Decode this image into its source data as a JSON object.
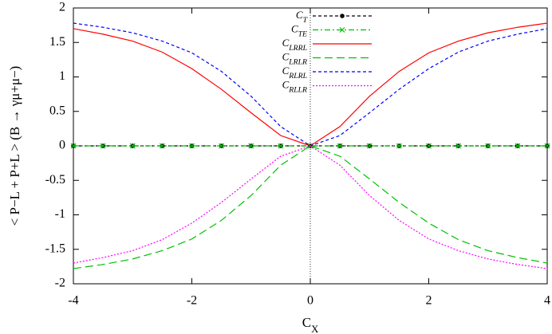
{
  "chart_data": {
    "type": "line",
    "x_label": "C_X",
    "y_label": "< P−L + P+L > (B → γμ+μ−)",
    "x": [
      -4,
      -3.5,
      -3,
      -2.5,
      -2,
      -1.5,
      -1,
      -0.5,
      0,
      0.5,
      1,
      1.5,
      2,
      2.5,
      3,
      3.5,
      4
    ],
    "series": [
      {
        "name": "C_T",
        "color": "#000000",
        "dash": "4,3",
        "marker": "dot",
        "values": [
          0,
          0,
          0,
          0,
          0,
          0,
          0,
          0,
          0,
          0,
          0,
          0,
          0,
          0,
          0,
          0,
          0
        ]
      },
      {
        "name": "C_TE",
        "color": "#00c000",
        "dash": "7,3,2,3",
        "marker": "cross",
        "values": [
          0,
          0,
          0,
          0,
          0,
          0,
          0,
          0,
          0,
          0,
          0,
          0,
          0,
          0,
          0,
          0,
          0
        ]
      },
      {
        "name": "C_LRRL",
        "color": "#ff0000",
        "dash": "none",
        "marker": "none",
        "values": [
          1.7,
          1.62,
          1.52,
          1.36,
          1.12,
          0.82,
          0.48,
          0.15,
          0,
          0.28,
          0.72,
          1.08,
          1.35,
          1.52,
          1.64,
          1.72,
          1.78
        ]
      },
      {
        "name": "C_LRLR",
        "color": "#00c000",
        "dash": "10,5",
        "marker": "none",
        "values": [
          -1.78,
          -1.72,
          -1.64,
          -1.52,
          -1.35,
          -1.08,
          -0.72,
          -0.28,
          0,
          -0.15,
          -0.48,
          -0.82,
          -1.12,
          -1.36,
          -1.52,
          -1.62,
          -1.7
        ]
      },
      {
        "name": "C_RLRL",
        "color": "#0000ff",
        "dash": "4,3",
        "marker": "none",
        "values": [
          1.78,
          1.72,
          1.64,
          1.52,
          1.35,
          1.08,
          0.72,
          0.28,
          0,
          0.15,
          0.48,
          0.82,
          1.12,
          1.36,
          1.52,
          1.62,
          1.7
        ]
      },
      {
        "name": "C_RLLR",
        "color": "#ff00ff",
        "dash": "2,2",
        "marker": "none",
        "values": [
          -1.7,
          -1.62,
          -1.52,
          -1.36,
          -1.12,
          -0.82,
          -0.48,
          -0.15,
          0,
          -0.28,
          -0.72,
          -1.08,
          -1.35,
          -1.52,
          -1.64,
          -1.72,
          -1.78
        ]
      }
    ],
    "xlim": [
      -4,
      4
    ],
    "xticks": [
      -4,
      -2,
      0,
      2,
      4
    ],
    "ylim": [
      -2,
      2
    ],
    "yticks": [
      -2,
      -1.5,
      -1,
      -0.5,
      0,
      0.5,
      1,
      1.5,
      2
    ]
  }
}
